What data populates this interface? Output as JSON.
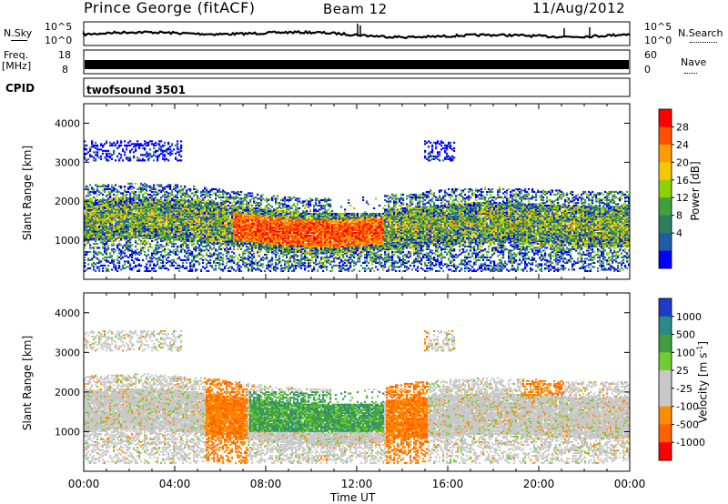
{
  "header": {
    "station": "Prince George (fitACF)",
    "beam": "Beam 12",
    "date": "11/Aug/2012"
  },
  "noise_panel": {
    "left_label": "N.Sky",
    "right_label": "N.Search",
    "left_ticks": [
      "10^5",
      "10^0"
    ],
    "right_ticks": [
      "10^5",
      "10^0"
    ]
  },
  "freq_panel": {
    "left_label": "Freq.",
    "left_unit": "[MHz]",
    "right_label": "Nave",
    "left_ticks": [
      "18",
      "8"
    ],
    "right_ticks": [
      "60",
      "0"
    ]
  },
  "cpid": {
    "label": "CPID",
    "value": "twofsound 3501"
  },
  "chart_data": [
    {
      "type": "heatmap",
      "name": "power",
      "ylabel": "Slant Range [km]",
      "yticks": [
        1000,
        2000,
        3000,
        4000
      ],
      "colorbar_label": "Power [dB]",
      "colorbar_ticks": [
        "28",
        "24",
        "20",
        "16",
        "12",
        "8",
        "4"
      ],
      "colors": [
        "#ff0000",
        "#ff5000",
        "#ff9a00",
        "#f4c800",
        "#8fd000",
        "#40a040",
        "#2e7e60",
        "#1f5caa",
        "#0000ff"
      ]
    },
    {
      "type": "heatmap",
      "name": "velocity",
      "ylabel": "Slant Range [km]",
      "yticks": [
        1000,
        2000,
        3000,
        4000
      ],
      "colorbar_label": "Velocity [m s",
      "colorbar_unit_sup": "-1",
      "colorbar_unit_close": "]",
      "colorbar_ticks": [
        "1000",
        "500",
        "100",
        "25",
        "-25",
        "-100",
        "-500",
        "-1000"
      ],
      "colors": [
        "#1e3cc8",
        "#2a8a88",
        "#40a040",
        "#70cc30",
        "#c8c8c8",
        "#c8c8c8",
        "#ff8c00",
        "#ff6000",
        "#ff0000"
      ]
    }
  ],
  "x_axis": {
    "ticks": [
      "00:00",
      "04:00",
      "08:00",
      "12:00",
      "16:00",
      "20:00",
      "00:00"
    ],
    "label": "Time UT"
  }
}
